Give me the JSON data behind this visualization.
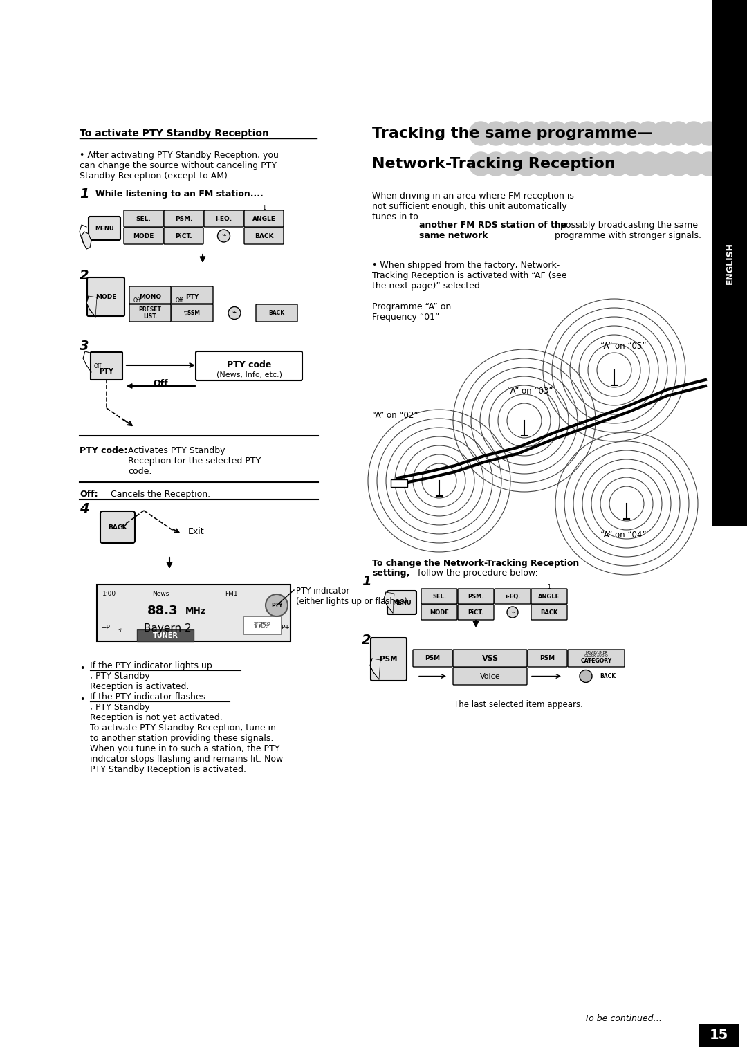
{
  "page_number": "15",
  "bg_color": "#ffffff",
  "text_color": "#000000",
  "title_right_line1": "Tracking the same programme—",
  "title_right_line2": "Network-Tracking Reception",
  "section_left_title": "To activate PTY Standby Reception",
  "english_label": "ENGLISH",
  "left_bullet1": "After activating PTY Standby Reception, you\ncan change the source without canceling PTY\nStandby Reception (except to AM).",
  "step1_text": "While listening to an FM station....",
  "pty_code_label": "PTY code",
  "pty_code_sub": "(News, Info, etc.)",
  "off_label": "Off",
  "pty_code_desc_bold": "PTY code:",
  "pty_code_desc": "Activates PTY Standby\nReception for the selected PTY\ncode.",
  "off_desc_bold": "Off:",
  "off_desc": "Cancels the Reception.",
  "exit_label": "Exit",
  "pty_indicator_label": "PTY indicator\n(either lights up or flashes)",
  "right_body1": "When driving in an area where FM reception is\nnot sufficient enough, this unit automatically\ntunes in to ",
  "right_body1_bold": "another FM RDS station of the\nsame network",
  "right_body1_end": ", possibly broadcasting the same\nprogramme with stronger signals.",
  "right_bullet1": "When shipped from the factory, Network-\nTracking Reception is activated with “AF (see\nthe next page)” selected.",
  "programme_label": "Programme “A” on\nFrequency “01”",
  "a_on_05": "“A” on “05”",
  "a_on_03": "“A” on “03”",
  "a_on_02": "“A” on “02”",
  "a_on_04": "“A” on “04”",
  "change_network_bold": "To change the Network-Tracking Reception",
  "change_network_bold2": "setting,",
  "change_network_end": " follow the procedure below:",
  "last_selected": "The last selected item appears.",
  "to_be_continued": "To be continued…",
  "tuner_display": "TUNER",
  "bavaria_text": "Bayern 2",
  "freq_text": "88.3  MHz",
  "time_text": "1:00",
  "news_text": "News",
  "fm_text": "FM1",
  "stereo_text": "STEREO\nB FLAT",
  "bullet_lights_underline": "If the PTY indicator lights up",
  "bullet_lights_rest": ", PTY Standby\nReception is activated.",
  "bullet_flashes_underline": "If the PTY indicator flashes",
  "bullet_flashes_rest": ", PTY Standby\nReception is not yet activated.\nTo activate PTY Standby Reception, tune in\nto another station providing these signals.\nWhen you tune in to such a station, the PTY\nindicator stops flashing and remains lit. Now\nPTY Standby Reception is activated."
}
